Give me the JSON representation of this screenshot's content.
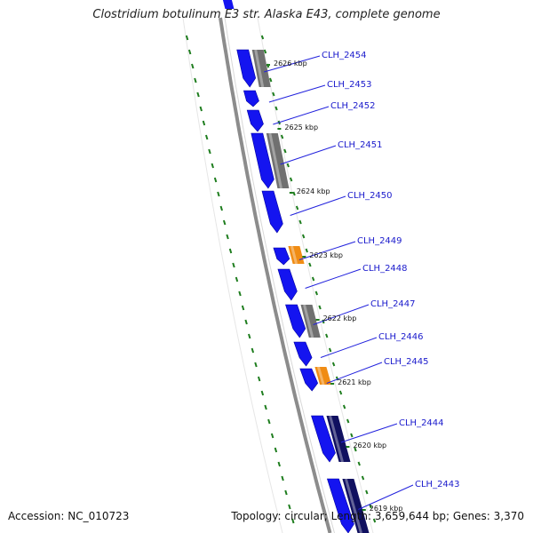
{
  "title": "Clostridium botulinum E3 str. Alaska E43, complete genome",
  "accession": "Accession: NC_010723",
  "summary": "Topology: circular; Length: 3,659,644 bp; Genes: 3,370",
  "colors": {
    "cds_blue": "#1414f0",
    "cds_orange": "#f08c14",
    "gene_gray": "#707070",
    "backbone": "#8c8c8c",
    "tick_green": "#1e7d1e",
    "label_blue": "#1a1acc"
  },
  "kbp_ticks": [
    "2626 kbp",
    "2625 kbp",
    "2624 kbp",
    "2623 kbp",
    "2622 kbp",
    "2621 kbp",
    "2620 kbp",
    "2619 kbp"
  ],
  "genes": [
    {
      "label": "CLH_2454",
      "cds": "blue",
      "gene_track": "gray"
    },
    {
      "label": "CLH_2453",
      "cds": "blue",
      "gene_track": "none"
    },
    {
      "label": "CLH_2452",
      "cds": "blue",
      "gene_track": "none"
    },
    {
      "label": "CLH_2451",
      "cds": "blue",
      "gene_track": "gray"
    },
    {
      "label": "CLH_2450",
      "cds": "blue",
      "gene_track": "none"
    },
    {
      "label": "CLH_2449",
      "cds": "blue",
      "gene_track": "orange"
    },
    {
      "label": "CLH_2448",
      "cds": "blue",
      "gene_track": "none"
    },
    {
      "label": "CLH_2447",
      "cds": "blue",
      "gene_track": "gray"
    },
    {
      "label": "CLH_2446",
      "cds": "blue",
      "gene_track": "none"
    },
    {
      "label": "CLH_2445",
      "cds": "blue",
      "gene_track": "orange"
    },
    {
      "label": "CLH_2444",
      "cds": "blue",
      "gene_track": "navy"
    },
    {
      "label": "CLH_2443",
      "cds": "blue",
      "gene_track": "navy"
    }
  ]
}
